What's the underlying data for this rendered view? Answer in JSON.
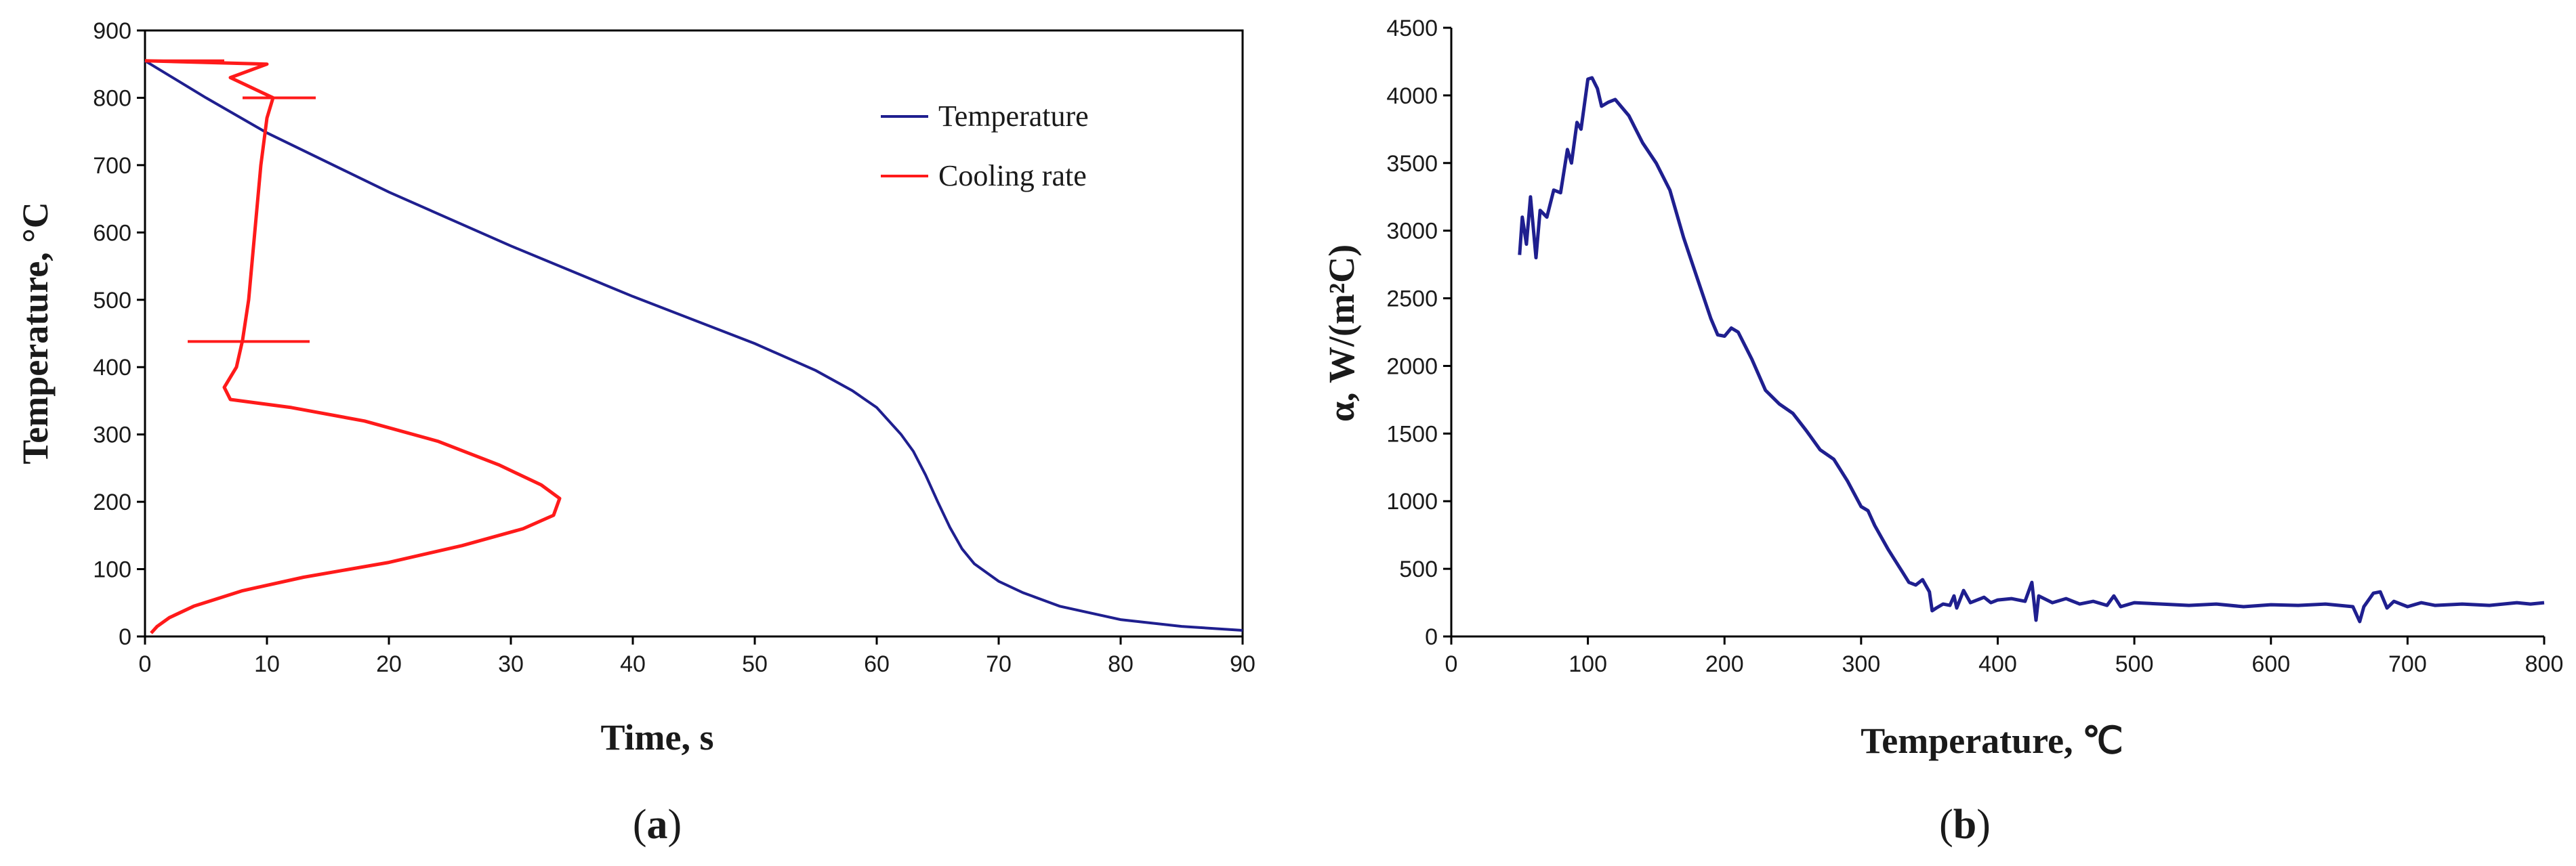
{
  "chart_data": [
    {
      "type": "line",
      "panel_label_open": "(",
      "panel_label_letter": "a",
      "panel_label_close": ")",
      "xlabel": "Time, s",
      "ylabel": "Temperature, °C",
      "xlim": [
        0,
        90
      ],
      "ylim": [
        0,
        900
      ],
      "x_ticks": [
        0,
        10,
        20,
        30,
        40,
        50,
        60,
        70,
        80,
        90
      ],
      "y_ticks": [
        0,
        100,
        200,
        300,
        400,
        500,
        600,
        700,
        800,
        900
      ],
      "legend_position": "top-right",
      "series": [
        {
          "name": "Temperature",
          "color": "#1f1f8f",
          "x_values": "time",
          "points": [
            [
              0,
              855
            ],
            [
              5,
              800
            ],
            [
              10,
              748
            ],
            [
              20,
              660
            ],
            [
              30,
              580
            ],
            [
              40,
              505
            ],
            [
              50,
              435
            ],
            [
              55,
              395
            ],
            [
              58,
              365
            ],
            [
              60,
              340
            ],
            [
              62,
              300
            ],
            [
              63,
              275
            ],
            [
              64,
              240
            ],
            [
              65,
              200
            ],
            [
              66,
              162
            ],
            [
              67,
              130
            ],
            [
              68,
              108
            ],
            [
              70,
              82
            ],
            [
              72,
              65
            ],
            [
              75,
              45
            ],
            [
              80,
              25
            ],
            [
              85,
              15
            ],
            [
              90,
              9
            ]
          ]
        },
        {
          "name": "Cooling rate",
          "color": "#ff1a1a",
          "x_values": "rate",
          "points": [
            [
              0,
              855
            ],
            [
              10,
              850
            ],
            [
              7,
              830
            ],
            [
              10.5,
              800
            ],
            [
              10,
              770
            ],
            [
              9.5,
              700
            ],
            [
              9,
              600
            ],
            [
              8.5,
              500
            ],
            [
              8,
              440
            ],
            [
              7.5,
              400
            ],
            [
              6.5,
              370
            ],
            [
              7,
              352
            ],
            [
              12,
              340
            ],
            [
              18,
              320
            ],
            [
              24,
              290
            ],
            [
              29,
              255
            ],
            [
              32.5,
              225
            ],
            [
              34,
              205
            ],
            [
              33.5,
              180
            ],
            [
              31,
              160
            ],
            [
              26,
              135
            ],
            [
              20,
              110
            ],
            [
              13,
              88
            ],
            [
              8,
              68
            ],
            [
              4,
              45
            ],
            [
              2,
              28
            ],
            [
              1,
              15
            ],
            [
              0.5,
              5
            ]
          ]
        }
      ],
      "spikes": [
        {
          "y": 855,
          "x1": 0,
          "x2": 6.5
        },
        {
          "y": 800,
          "x1": 8,
          "x2": 14
        },
        {
          "y": 438,
          "x1": 3.5,
          "x2": 13.5
        }
      ]
    },
    {
      "type": "line",
      "panel_label_open": "(",
      "panel_label_letter": "b",
      "panel_label_close": ")",
      "xlabel": "Temperature, ℃",
      "ylabel": "α, W/(m²C)",
      "xlim": [
        0,
        800
      ],
      "ylim": [
        0,
        4500
      ],
      "x_ticks": [
        0,
        100,
        200,
        300,
        400,
        500,
        600,
        700,
        800
      ],
      "y_ticks": [
        0,
        500,
        1000,
        1500,
        2000,
        2500,
        3000,
        3500,
        4000,
        4500
      ],
      "series": [
        {
          "name": "alpha",
          "color": "#1f1f8f",
          "points": [
            [
              50,
              2820
            ],
            [
              52,
              3100
            ],
            [
              55,
              2900
            ],
            [
              58,
              3250
            ],
            [
              62,
              2800
            ],
            [
              65,
              3150
            ],
            [
              70,
              3100
            ],
            [
              75,
              3300
            ],
            [
              80,
              3280
            ],
            [
              85,
              3600
            ],
            [
              88,
              3500
            ],
            [
              92,
              3800
            ],
            [
              95,
              3750
            ],
            [
              100,
              4120
            ],
            [
              103,
              4130
            ],
            [
              107,
              4050
            ],
            [
              110,
              3920
            ],
            [
              115,
              3950
            ],
            [
              120,
              3970
            ],
            [
              130,
              3850
            ],
            [
              140,
              3650
            ],
            [
              150,
              3500
            ],
            [
              160,
              3300
            ],
            [
              170,
              2950
            ],
            [
              180,
              2650
            ],
            [
              190,
              2350
            ],
            [
              195,
              2230
            ],
            [
              200,
              2220
            ],
            [
              205,
              2280
            ],
            [
              210,
              2250
            ],
            [
              220,
              2050
            ],
            [
              230,
              1820
            ],
            [
              240,
              1720
            ],
            [
              250,
              1650
            ],
            [
              260,
              1520
            ],
            [
              270,
              1380
            ],
            [
              280,
              1310
            ],
            [
              290,
              1150
            ],
            [
              300,
              960
            ],
            [
              305,
              930
            ],
            [
              310,
              820
            ],
            [
              320,
              640
            ],
            [
              330,
              480
            ],
            [
              335,
              400
            ],
            [
              340,
              380
            ],
            [
              345,
              420
            ],
            [
              350,
              330
            ],
            [
              352,
              190
            ],
            [
              355,
              210
            ],
            [
              360,
              240
            ],
            [
              365,
              230
            ],
            [
              368,
              300
            ],
            [
              370,
              210
            ],
            [
              375,
              340
            ],
            [
              380,
              250
            ],
            [
              385,
              270
            ],
            [
              390,
              290
            ],
            [
              395,
              250
            ],
            [
              400,
              270
            ],
            [
              410,
              280
            ],
            [
              420,
              260
            ],
            [
              425,
              400
            ],
            [
              428,
              120
            ],
            [
              430,
              300
            ],
            [
              440,
              250
            ],
            [
              450,
              280
            ],
            [
              460,
              240
            ],
            [
              470,
              260
            ],
            [
              480,
              230
            ],
            [
              485,
              300
            ],
            [
              490,
              220
            ],
            [
              500,
              250
            ],
            [
              520,
              240
            ],
            [
              540,
              230
            ],
            [
              560,
              240
            ],
            [
              580,
              220
            ],
            [
              600,
              235
            ],
            [
              620,
              230
            ],
            [
              640,
              240
            ],
            [
              660,
              220
            ],
            [
              665,
              110
            ],
            [
              668,
              220
            ],
            [
              675,
              320
            ],
            [
              680,
              330
            ],
            [
              685,
              210
            ],
            [
              690,
              260
            ],
            [
              700,
              220
            ],
            [
              710,
              250
            ],
            [
              720,
              230
            ],
            [
              740,
              240
            ],
            [
              760,
              230
            ],
            [
              780,
              250
            ],
            [
              790,
              240
            ],
            [
              800,
              250
            ]
          ]
        }
      ]
    }
  ]
}
